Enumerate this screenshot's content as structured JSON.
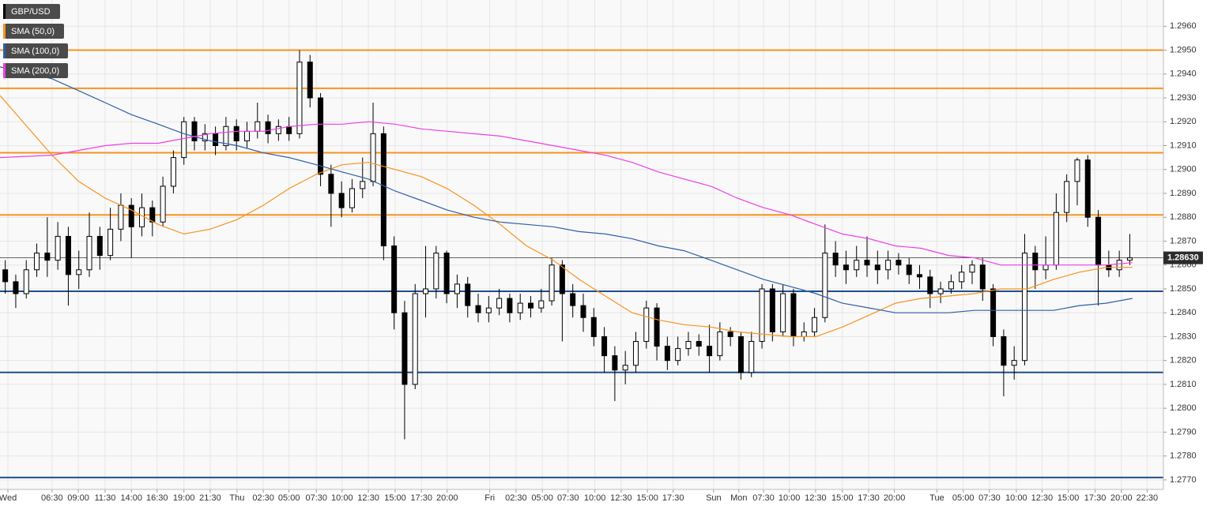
{
  "chart_data": {
    "type": "candlestick",
    "symbol": "GBP/USD",
    "ylim": [
      1.2766,
      1.2971
    ],
    "yticks": [
      {
        "value": 1.277,
        "label": "1.2770"
      },
      {
        "value": 1.278,
        "label": "1.2780"
      },
      {
        "value": 1.279,
        "label": "1.2790"
      },
      {
        "value": 1.28,
        "label": "1.2800"
      },
      {
        "value": 1.281,
        "label": "1.2810"
      },
      {
        "value": 1.282,
        "label": "1.2820"
      },
      {
        "value": 1.283,
        "label": "1.2830"
      },
      {
        "value": 1.284,
        "label": "1.2840"
      },
      {
        "value": 1.285,
        "label": "1.2850"
      },
      {
        "value": 1.286,
        "label": "1.2860"
      },
      {
        "value": 1.287,
        "label": "1.2870"
      },
      {
        "value": 1.288,
        "label": "1.2880"
      },
      {
        "value": 1.289,
        "label": "1.2890"
      },
      {
        "value": 1.29,
        "label": "1.2900"
      },
      {
        "value": 1.291,
        "label": "1.2910"
      },
      {
        "value": 1.292,
        "label": "1.2920"
      },
      {
        "value": 1.293,
        "label": "1.2930"
      },
      {
        "value": 1.294,
        "label": "1.2940"
      },
      {
        "value": 1.295,
        "label": "1.2950"
      },
      {
        "value": 1.296,
        "label": "1.2960"
      }
    ],
    "xlim": [
      0,
      221.4
    ],
    "xticks": [
      {
        "value": 1.5,
        "label": "Wed"
      },
      {
        "value": 9.9,
        "label": "06:30"
      },
      {
        "value": 14.9,
        "label": "09:00"
      },
      {
        "value": 20,
        "label": "11:30"
      },
      {
        "value": 25,
        "label": "14:00"
      },
      {
        "value": 29.9,
        "label": "16:30"
      },
      {
        "value": 35,
        "label": "19:00"
      },
      {
        "value": 40,
        "label": "21:30"
      },
      {
        "value": 45.1,
        "label": "Thu"
      },
      {
        "value": 50.1,
        "label": "02:30"
      },
      {
        "value": 55,
        "label": "05:00"
      },
      {
        "value": 60.2,
        "label": "07:30"
      },
      {
        "value": 65.1,
        "label": "10:00"
      },
      {
        "value": 70.1,
        "label": "12:30"
      },
      {
        "value": 75.2,
        "label": "15:00"
      },
      {
        "value": 80.2,
        "label": "17:30"
      },
      {
        "value": 85.1,
        "label": "20:00"
      },
      {
        "value": 93.2,
        "label": "Fri"
      },
      {
        "value": 98.2,
        "label": "02:30"
      },
      {
        "value": 103.2,
        "label": "05:00"
      },
      {
        "value": 108.1,
        "label": "07:30"
      },
      {
        "value": 113.2,
        "label": "10:00"
      },
      {
        "value": 118.2,
        "label": "12:30"
      },
      {
        "value": 123.2,
        "label": "15:00"
      },
      {
        "value": 128.1,
        "label": "17:30"
      },
      {
        "value": 135.8,
        "label": "Sun"
      },
      {
        "value": 140.6,
        "label": "Mon"
      },
      {
        "value": 145.3,
        "label": "07:30"
      },
      {
        "value": 150.2,
        "label": "10:00"
      },
      {
        "value": 155.2,
        "label": "12:30"
      },
      {
        "value": 160.3,
        "label": "15:00"
      },
      {
        "value": 165.3,
        "label": "17:30"
      },
      {
        "value": 170.2,
        "label": "20:00"
      },
      {
        "value": 178.3,
        "label": "Tue"
      },
      {
        "value": 183.3,
        "label": "05:00"
      },
      {
        "value": 188.3,
        "label": "07:30"
      },
      {
        "value": 193.4,
        "label": "10:00"
      },
      {
        "value": 198.3,
        "label": "12:30"
      },
      {
        "value": 203.3,
        "label": "15:00"
      },
      {
        "value": 208.4,
        "label": "17:30"
      },
      {
        "value": 213.4,
        "label": "20:00"
      },
      {
        "value": 218.3,
        "label": "22:30"
      }
    ],
    "grid": true,
    "up_color": "#ffffff",
    "down_color": "#000000",
    "candles": {
      "x": [
        1,
        3,
        5,
        7,
        9,
        11,
        13,
        15,
        17,
        19,
        21,
        23,
        25,
        27,
        29,
        31,
        33,
        35,
        37,
        39,
        41,
        43,
        45,
        47,
        49,
        51,
        53,
        55,
        57,
        59,
        61,
        63,
        65,
        67,
        69,
        71,
        73,
        75,
        77,
        79,
        81,
        83,
        85,
        87,
        89,
        91,
        93,
        95,
        97,
        99,
        101,
        103,
        105,
        107,
        109,
        111,
        113,
        115,
        117,
        119,
        121,
        123,
        125,
        127,
        129,
        131,
        133,
        135,
        137,
        139,
        141,
        143,
        145,
        147,
        149,
        151,
        153,
        155,
        157,
        159,
        161,
        163,
        165,
        167,
        169,
        171,
        173,
        175,
        177,
        179,
        181,
        183,
        185,
        187,
        189,
        191,
        193,
        195,
        197,
        199,
        201,
        203,
        205,
        207,
        209,
        211,
        213,
        215
      ],
      "ohlc": [
        [
          1.2858,
          1.2862,
          1.2848,
          1.2853
        ],
        [
          1.2853,
          1.2856,
          1.2842,
          1.2848
        ],
        [
          1.2848,
          1.2862,
          1.2846,
          1.2858
        ],
        [
          1.2858,
          1.2869,
          1.2855,
          1.2865
        ],
        [
          1.2865,
          1.288,
          1.2855,
          1.2862
        ],
        [
          1.2862,
          1.2878,
          1.2858,
          1.2872
        ],
        [
          1.2872,
          1.2876,
          1.2843,
          1.2856
        ],
        [
          1.2856,
          1.2866,
          1.285,
          1.2858
        ],
        [
          1.2858,
          1.2882,
          1.2855,
          1.2872
        ],
        [
          1.2872,
          1.2876,
          1.2858,
          1.2864
        ],
        [
          1.2864,
          1.2884,
          1.2862,
          1.2875
        ],
        [
          1.2875,
          1.289,
          1.287,
          1.2885
        ],
        [
          1.2885,
          1.2888,
          1.2863,
          1.2876
        ],
        [
          1.2876,
          1.289,
          1.2872,
          1.2884
        ],
        [
          1.2884,
          1.2887,
          1.2872,
          1.2878
        ],
        [
          1.2878,
          1.2897,
          1.2876,
          1.2893
        ],
        [
          1.2893,
          1.2908,
          1.289,
          1.2905
        ],
        [
          1.2905,
          1.2922,
          1.2902,
          1.292
        ],
        [
          1.292,
          1.2922,
          1.2908,
          1.2912
        ],
        [
          1.2912,
          1.2919,
          1.2908,
          1.2915
        ],
        [
          1.2915,
          1.2918,
          1.2906,
          1.291
        ],
        [
          1.291,
          1.2922,
          1.2908,
          1.2918
        ],
        [
          1.2918,
          1.2921,
          1.2908,
          1.2912
        ],
        [
          1.2912,
          1.292,
          1.2909,
          1.2916
        ],
        [
          1.2916,
          1.2928,
          1.2913,
          1.292
        ],
        [
          1.292,
          1.2923,
          1.2911,
          1.2915
        ],
        [
          1.2915,
          1.2921,
          1.2912,
          1.2918
        ],
        [
          1.2918,
          1.2922,
          1.2912,
          1.2915
        ],
        [
          1.2915,
          1.295,
          1.2913,
          1.2945
        ],
        [
          1.2945,
          1.2948,
          1.2926,
          1.293
        ],
        [
          1.293,
          1.2932,
          1.2893,
          1.2898
        ],
        [
          1.2898,
          1.2902,
          1.2876,
          1.289
        ],
        [
          1.289,
          1.2895,
          1.288,
          1.2884
        ],
        [
          1.2884,
          1.2896,
          1.2882,
          1.2892
        ],
        [
          1.2892,
          1.2905,
          1.2888,
          1.2895
        ],
        [
          1.2895,
          1.2928,
          1.2893,
          1.2915
        ],
        [
          1.2915,
          1.2918,
          1.2862,
          1.2868
        ],
        [
          1.2868,
          1.2872,
          1.2833,
          1.284
        ],
        [
          1.284,
          1.2845,
          1.2787,
          1.281
        ],
        [
          1.281,
          1.2852,
          1.2808,
          1.2848
        ],
        [
          1.2848,
          1.2868,
          1.2838,
          1.285
        ],
        [
          1.285,
          1.2868,
          1.2846,
          1.2865
        ],
        [
          1.2865,
          1.2866,
          1.2844,
          1.2848
        ],
        [
          1.2848,
          1.2856,
          1.2842,
          1.2852
        ],
        [
          1.2852,
          1.2855,
          1.2838,
          1.2843
        ],
        [
          1.2843,
          1.2848,
          1.2836,
          1.284
        ],
        [
          1.284,
          1.2847,
          1.2836,
          1.2842
        ],
        [
          1.2842,
          1.285,
          1.2839,
          1.2846
        ],
        [
          1.2846,
          1.2848,
          1.2836,
          1.284
        ],
        [
          1.284,
          1.2848,
          1.2837,
          1.2844
        ],
        [
          1.2844,
          1.2847,
          1.2838,
          1.2842
        ],
        [
          1.2842,
          1.285,
          1.284,
          1.2845
        ],
        [
          1.2845,
          1.2863,
          1.2843,
          1.286
        ],
        [
          1.286,
          1.2862,
          1.2828,
          1.2848
        ],
        [
          1.2848,
          1.2852,
          1.2838,
          1.2843
        ],
        [
          1.2843,
          1.2848,
          1.2832,
          1.2838
        ],
        [
          1.2838,
          1.2842,
          1.2826,
          1.283
        ],
        [
          1.283,
          1.2834,
          1.2815,
          1.2822
        ],
        [
          1.2822,
          1.2826,
          1.2803,
          1.2816
        ],
        [
          1.2816,
          1.2824,
          1.281,
          1.2818
        ],
        [
          1.2818,
          1.2832,
          1.2815,
          1.2828
        ],
        [
          1.2828,
          1.2845,
          1.2825,
          1.2842
        ],
        [
          1.2842,
          1.2844,
          1.282,
          1.2826
        ],
        [
          1.2826,
          1.283,
          1.2816,
          1.282
        ],
        [
          1.282,
          1.283,
          1.2818,
          1.2825
        ],
        [
          1.2825,
          1.2832,
          1.2822,
          1.2828
        ],
        [
          1.2828,
          1.2831,
          1.2822,
          1.2826
        ],
        [
          1.2826,
          1.2835,
          1.2815,
          1.2822
        ],
        [
          1.2822,
          1.2836,
          1.282,
          1.2832
        ],
        [
          1.2832,
          1.2834,
          1.2826,
          1.283
        ],
        [
          1.283,
          1.2832,
          1.2812,
          1.2815
        ],
        [
          1.2815,
          1.2832,
          1.2813,
          1.2828
        ],
        [
          1.2828,
          1.2852,
          1.2825,
          1.285
        ],
        [
          1.285,
          1.2852,
          1.2828,
          1.2832
        ],
        [
          1.2832,
          1.2852,
          1.283,
          1.2848
        ],
        [
          1.2848,
          1.285,
          1.2826,
          1.283
        ],
        [
          1.283,
          1.2836,
          1.2828,
          1.2832
        ],
        [
          1.2832,
          1.2842,
          1.283,
          1.2838
        ],
        [
          1.2838,
          1.2877,
          1.2836,
          1.2865
        ],
        [
          1.2865,
          1.287,
          1.2855,
          1.286
        ],
        [
          1.286,
          1.2866,
          1.2852,
          1.2858
        ],
        [
          1.2858,
          1.2868,
          1.2855,
          1.2862
        ],
        [
          1.2862,
          1.2872,
          1.2855,
          1.286
        ],
        [
          1.286,
          1.2866,
          1.2852,
          1.2858
        ],
        [
          1.2858,
          1.2866,
          1.2854,
          1.2862
        ],
        [
          1.2862,
          1.2865,
          1.2856,
          1.286
        ],
        [
          1.286,
          1.2863,
          1.2852,
          1.2856
        ],
        [
          1.2856,
          1.286,
          1.285,
          1.2855
        ],
        [
          1.2855,
          1.2858,
          1.2842,
          1.2848
        ],
        [
          1.2848,
          1.2853,
          1.2844,
          1.285
        ],
        [
          1.285,
          1.2856,
          1.2848,
          1.2853
        ],
        [
          1.2853,
          1.286,
          1.285,
          1.2857
        ],
        [
          1.2857,
          1.2862,
          1.2852,
          1.286
        ],
        [
          1.286,
          1.2863,
          1.2845,
          1.285
        ],
        [
          1.285,
          1.2852,
          1.2826,
          1.283
        ],
        [
          1.283,
          1.2833,
          1.2805,
          1.2818
        ],
        [
          1.2818,
          1.2826,
          1.2812,
          1.282
        ],
        [
          1.282,
          1.2873,
          1.2818,
          1.2865
        ],
        [
          1.2865,
          1.2868,
          1.285,
          1.2858
        ],
        [
          1.2858,
          1.2872,
          1.2854,
          1.286
        ],
        [
          1.286,
          1.289,
          1.2858,
          1.2882
        ],
        [
          1.2882,
          1.2898,
          1.2878,
          1.2895
        ],
        [
          1.2895,
          1.2905,
          1.2885,
          1.2904
        ],
        [
          1.2904,
          1.2906,
          1.2876,
          1.288
        ],
        [
          1.288,
          1.2883,
          1.2843,
          1.286
        ],
        [
          1.286,
          1.2866,
          1.2855,
          1.2858
        ],
        [
          1.2858,
          1.2866,
          1.2855,
          1.2862
        ],
        [
          1.2862,
          1.2873,
          1.286,
          1.2863
        ]
      ]
    },
    "overlay_x": [
      0,
      9.9,
      15,
      20,
      25,
      30.1,
      35,
      40,
      45.1,
      50.1,
      55,
      60.2,
      65.1,
      70.1,
      75.2,
      80.2,
      85.1,
      90.2,
      95.2,
      100.2,
      105.3,
      110.2,
      115.2,
      120.3,
      125.3,
      130.2,
      135.3,
      140.3,
      145.3,
      150.4,
      155.3,
      160.3,
      165.4,
      170.4,
      175.3,
      180.5,
      185.4,
      190.4,
      195.5,
      200.5,
      205.4,
      210.5,
      215.5
    ],
    "series": [
      {
        "name": "SMA (50,0)",
        "color": "#f7931e",
        "values": [
          1.2931,
          1.2906,
          1.2895,
          1.2888,
          1.2883,
          1.2877,
          1.2873,
          1.2875,
          1.2879,
          1.2885,
          1.2892,
          1.2898,
          1.2902,
          1.2903,
          1.29,
          1.2897,
          1.2892,
          1.2885,
          1.2877,
          1.2868,
          1.2862,
          1.2854,
          1.2847,
          1.284,
          1.2837,
          1.2835,
          1.2834,
          1.2832,
          1.2831,
          1.283,
          1.283,
          1.2834,
          1.2839,
          1.2844,
          1.2846,
          1.2847,
          1.2848,
          1.285,
          1.285,
          1.2854,
          1.2857,
          1.2859,
          1.2859
        ]
      },
      {
        "name": "SMA (100,0)",
        "color": "#2e5fa8",
        "values": [
          1.2943,
          1.2938,
          1.2933,
          1.2928,
          1.2923,
          1.2919,
          1.2915,
          1.2912,
          1.291,
          1.2907,
          1.2905,
          1.2902,
          1.2899,
          1.2896,
          1.2891,
          1.2887,
          1.2883,
          1.288,
          1.2878,
          1.2877,
          1.2876,
          1.2874,
          1.2873,
          1.2871,
          1.2868,
          1.2866,
          1.2862,
          1.2858,
          1.2854,
          1.2851,
          1.2848,
          1.2844,
          1.2842,
          1.284,
          1.284,
          1.284,
          1.2841,
          1.2841,
          1.2841,
          1.2841,
          1.2843,
          1.2844,
          1.2846
        ]
      },
      {
        "name": "SMA (200,0)",
        "color": "#ee3ee6",
        "values": [
          1.2905,
          1.2906,
          1.2908,
          1.291,
          1.2911,
          1.2911,
          1.2913,
          1.2915,
          1.2916,
          1.2916,
          1.2918,
          1.2919,
          1.2919,
          1.292,
          1.2919,
          1.2917,
          1.2916,
          1.2915,
          1.2914,
          1.2912,
          1.291,
          1.2908,
          1.2906,
          1.2903,
          1.2899,
          1.2896,
          1.2893,
          1.2888,
          1.2884,
          1.2881,
          1.2877,
          1.2873,
          1.2871,
          1.2868,
          1.2867,
          1.2864,
          1.2863,
          1.286,
          1.286,
          1.286,
          1.286,
          1.286,
          1.2861
        ]
      }
    ],
    "levels": [
      {
        "value": 1.295,
        "color": "#f7931e"
      },
      {
        "value": 1.2934,
        "color": "#f7931e"
      },
      {
        "value": 1.2907,
        "color": "#f7931e"
      },
      {
        "value": 1.2881,
        "color": "#f7931e"
      },
      {
        "value": 1.2849,
        "color": "#1f4e8c"
      },
      {
        "value": 1.2815,
        "color": "#1f4e8c"
      },
      {
        "value": 1.2771,
        "color": "#1f4e8c"
      }
    ],
    "last_price": {
      "value": 1.2863,
      "label": "1.28630"
    }
  }
}
